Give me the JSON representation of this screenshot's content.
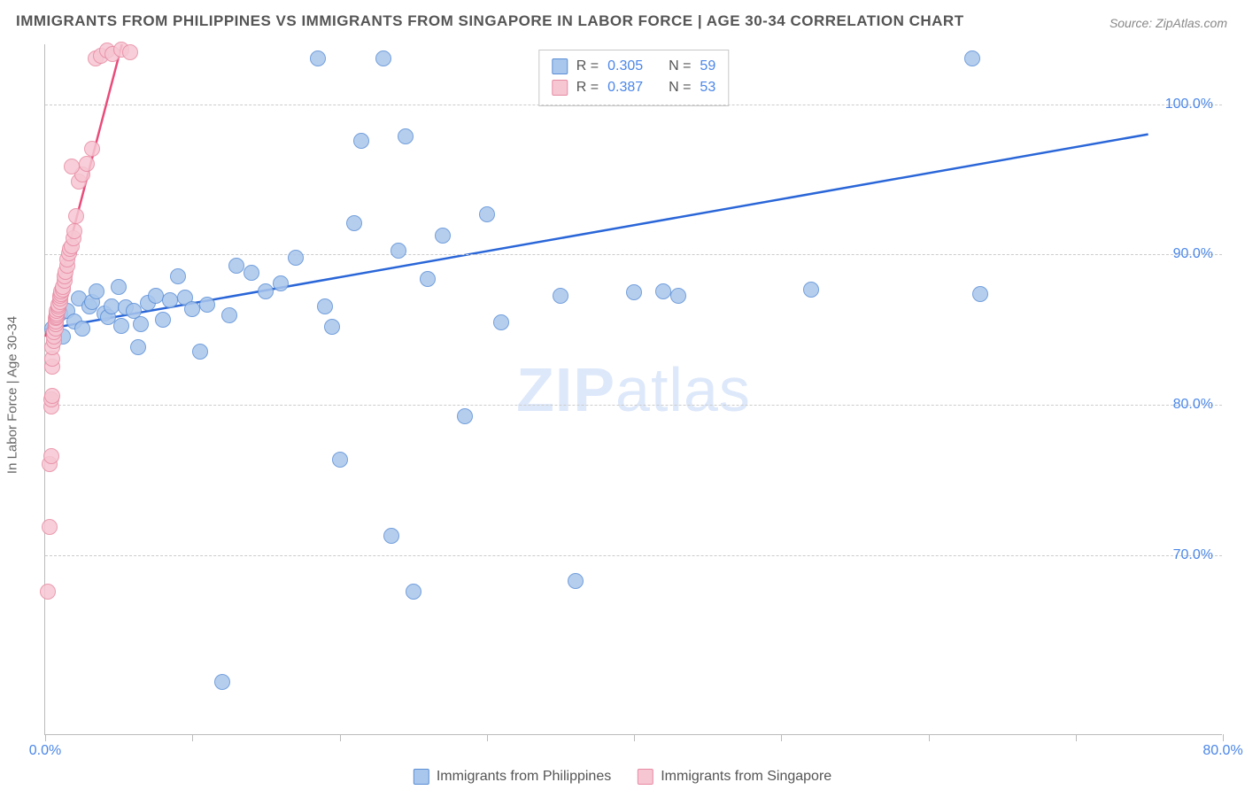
{
  "title": "IMMIGRANTS FROM PHILIPPINES VS IMMIGRANTS FROM SINGAPORE IN LABOR FORCE | AGE 30-34 CORRELATION CHART",
  "source": "Source: ZipAtlas.com",
  "ylabel": "In Labor Force | Age 30-34",
  "watermark_a": "ZIP",
  "watermark_b": "atlas",
  "chart": {
    "type": "scatter",
    "xlim": [
      0,
      80
    ],
    "ylim": [
      58,
      104
    ],
    "x_ticks": [
      0,
      10,
      20,
      30,
      40,
      50,
      60,
      70,
      80
    ],
    "x_tick_labels": {
      "0": "0.0%",
      "80": "80.0%"
    },
    "y_ticks": [
      70,
      80,
      90,
      100
    ],
    "y_tick_labels": {
      "70": "70.0%",
      "80": "80.0%",
      "90": "90.0%",
      "100": "100.0%"
    },
    "background_color": "#ffffff",
    "grid_color": "#cccccc",
    "axis_color": "#bbbbbb",
    "marker_radius": 9,
    "marker_border_width": 1.2,
    "marker_fill_opacity": 0.35,
    "line_width": 2.5
  },
  "series": [
    {
      "id": "philippines",
      "label": "Immigrants from Philippines",
      "color_border": "#5b8fd6",
      "color_fill": "#a9c6ec",
      "line_color": "#2a66d8",
      "R": "0.305",
      "N": "59",
      "trend": {
        "x1": 0,
        "y1": 85,
        "x2": 75,
        "y2": 98
      },
      "points": [
        [
          0.5,
          85
        ],
        [
          1,
          86
        ],
        [
          1.2,
          84.5
        ],
        [
          1.5,
          86.2
        ],
        [
          2,
          85.5
        ],
        [
          2.3,
          87
        ],
        [
          2.5,
          85
        ],
        [
          3,
          86.5
        ],
        [
          3.2,
          86.8
        ],
        [
          3.5,
          87.5
        ],
        [
          4,
          86
        ],
        [
          4.3,
          85.8
        ],
        [
          4.5,
          86.5
        ],
        [
          5,
          87.8
        ],
        [
          5.2,
          85.2
        ],
        [
          5.5,
          86.4
        ],
        [
          6,
          86.2
        ],
        [
          6.3,
          83.8
        ],
        [
          6.5,
          85.3
        ],
        [
          7,
          86.7
        ],
        [
          7.5,
          87.2
        ],
        [
          8,
          85.6
        ],
        [
          8.5,
          86.9
        ],
        [
          9,
          88.5
        ],
        [
          9.5,
          87.1
        ],
        [
          10,
          86.3
        ],
        [
          10.5,
          83.5
        ],
        [
          11,
          86.6
        ],
        [
          12,
          61.5
        ],
        [
          12.5,
          85.9
        ],
        [
          13,
          89.2
        ],
        [
          14,
          88.7
        ],
        [
          15,
          87.5
        ],
        [
          16,
          88
        ],
        [
          17,
          89.7
        ],
        [
          18.5,
          103
        ],
        [
          19,
          86.5
        ],
        [
          19.5,
          85.1
        ],
        [
          20,
          76.3
        ],
        [
          21,
          92
        ],
        [
          21.5,
          97.5
        ],
        [
          23,
          103
        ],
        [
          23.5,
          71.2
        ],
        [
          24,
          90.2
        ],
        [
          24.5,
          97.8
        ],
        [
          25,
          67.5
        ],
        [
          26,
          88.3
        ],
        [
          27,
          91.2
        ],
        [
          28.5,
          79.2
        ],
        [
          30,
          92.6
        ],
        [
          31,
          85.4
        ],
        [
          35,
          87.2
        ],
        [
          36,
          68.2
        ],
        [
          40,
          87.4
        ],
        [
          42,
          87.5
        ],
        [
          43,
          87.2
        ],
        [
          52,
          87.6
        ],
        [
          63,
          103
        ],
        [
          63.5,
          87.3
        ]
      ]
    },
    {
      "id": "singapore",
      "label": "Immigrants from Singapore",
      "color_border": "#e88ba3",
      "color_fill": "#f6c6d3",
      "line_color": "#e94b7a",
      "R": "0.387",
      "N": "53",
      "trend": {
        "x1": 0,
        "y1": 84.5,
        "x2": 5.2,
        "y2": 104
      },
      "points": [
        [
          0.2,
          67.5
        ],
        [
          0.3,
          71.8
        ],
        [
          0.3,
          76
        ],
        [
          0.4,
          76.5
        ],
        [
          0.4,
          79.8
        ],
        [
          0.4,
          80.3
        ],
        [
          0.5,
          80.5
        ],
        [
          0.5,
          82.5
        ],
        [
          0.5,
          83
        ],
        [
          0.5,
          83.8
        ],
        [
          0.6,
          84.2
        ],
        [
          0.6,
          84.5
        ],
        [
          0.6,
          84.8
        ],
        [
          0.7,
          85
        ],
        [
          0.7,
          85.3
        ],
        [
          0.7,
          85.5
        ],
        [
          0.7,
          85.7
        ],
        [
          0.8,
          85.8
        ],
        [
          0.8,
          85.9
        ],
        [
          0.8,
          86
        ],
        [
          0.8,
          86.2
        ],
        [
          0.9,
          86.3
        ],
        [
          0.9,
          86.5
        ],
        [
          0.9,
          86.6
        ],
        [
          1,
          86.8
        ],
        [
          1,
          87
        ],
        [
          1,
          87.2
        ],
        [
          1.1,
          87.3
        ],
        [
          1.1,
          87.5
        ],
        [
          1.2,
          87.6
        ],
        [
          1.2,
          87.8
        ],
        [
          1.3,
          88.2
        ],
        [
          1.3,
          88.5
        ],
        [
          1.4,
          88.8
        ],
        [
          1.5,
          89.2
        ],
        [
          1.5,
          89.6
        ],
        [
          1.6,
          90
        ],
        [
          1.7,
          90.3
        ],
        [
          1.8,
          90.5
        ],
        [
          1.9,
          91
        ],
        [
          2,
          91.5
        ],
        [
          2.1,
          92.5
        ],
        [
          2.3,
          94.8
        ],
        [
          2.5,
          95.3
        ],
        [
          1.8,
          95.8
        ],
        [
          2.8,
          96
        ],
        [
          3.2,
          97
        ],
        [
          3.4,
          103
        ],
        [
          3.8,
          103.2
        ],
        [
          4.2,
          103.5
        ],
        [
          4.6,
          103.3
        ],
        [
          5.2,
          103.6
        ],
        [
          5.8,
          103.4
        ]
      ]
    }
  ],
  "legend": {
    "r_label": "R =",
    "n_label": "N ="
  }
}
